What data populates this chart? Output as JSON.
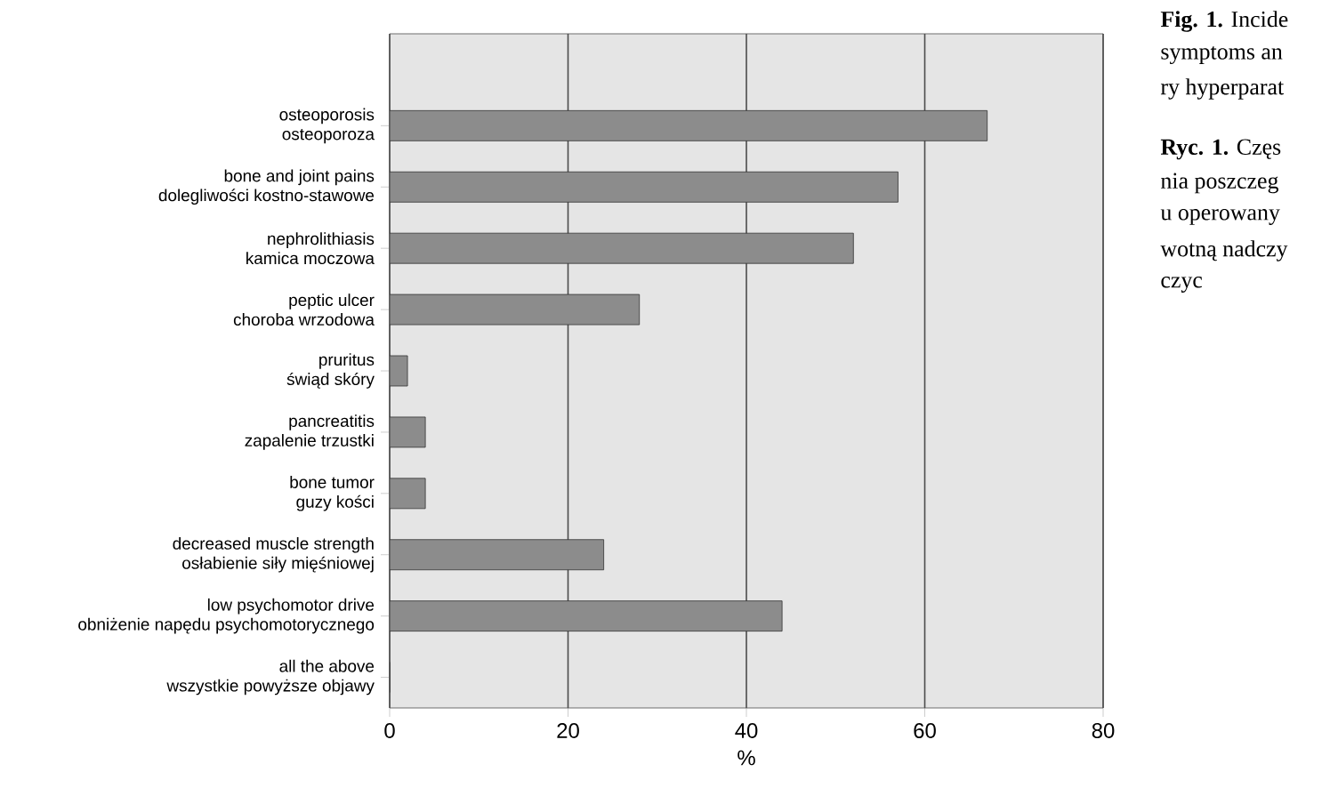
{
  "chart_data": {
    "type": "bar",
    "orientation": "horizontal",
    "categories": [
      "osteoporosis\nosteoporoza",
      "bone and joint pains\ndolegliwości kostno-stawowe",
      "nephrolithiasis\nkamica moczowa",
      "peptic ulcer\nchoroba wrzodowa",
      "pruritus\nświąd skóry",
      "pancreatitis\nzapalenie trzustki",
      "bone tumor\nguzy kości",
      "decreased muscle strength\nosłabienie siły mięśniowej",
      "low psychomotor drive\nobniżenie napędu psychomotorycznego",
      "all the above\nwszystkie powyższe objawy"
    ],
    "values": [
      67,
      57,
      52,
      28,
      2,
      4,
      4,
      24,
      44,
      0
    ],
    "color": "#8c8c8c",
    "xlabel": "%",
    "xlim": [
      0,
      80
    ],
    "xticks": [
      0,
      20,
      40,
      60,
      80
    ],
    "grid": "x",
    "annotations": [
      "**Fig. 1.** Incide",
      "symptoms an",
      "ry hyperparat",
      "**Ryc. 1.** Częs",
      "nia poszczeg",
      "u operowany",
      "wotną nadczy",
      "czyc"
    ]
  }
}
